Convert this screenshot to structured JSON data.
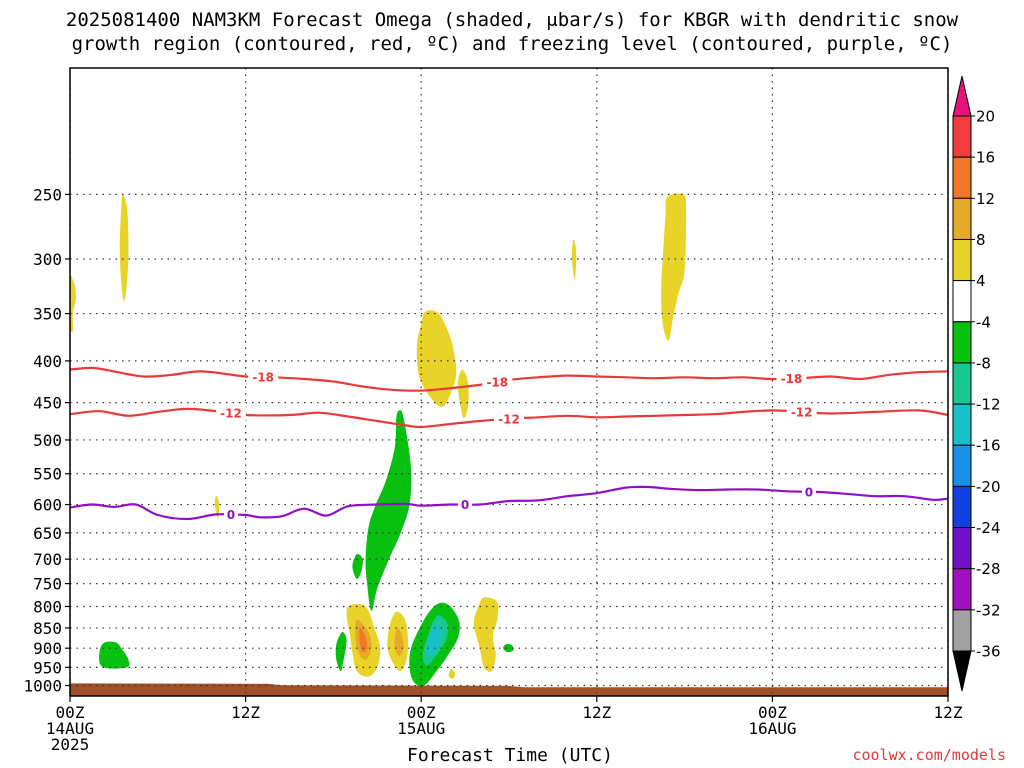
{
  "chart_data": {
    "type": "heatmap",
    "title": "2025081400 NAM3KM Forecast Omega (shaded, μbar/s) for KBGR with dendritic snow",
    "subtitle": "growth region (contoured, red, ºC) and freezing level (contoured, purple, ºC)",
    "xlabel": "Forecast Time (UTC)",
    "credit": "coolwx.com/models",
    "x_range_hours": [
      0,
      60
    ],
    "y_range_mb": [
      1030,
      175
    ],
    "y_scale": "log-pressure",
    "grid": true,
    "y_ticks": [
      250,
      300,
      350,
      400,
      450,
      500,
      550,
      600,
      650,
      700,
      750,
      800,
      850,
      900,
      950,
      1000
    ],
    "x_ticks": [
      {
        "hour": 0,
        "lines": [
          "00Z",
          "14AUG",
          "2025"
        ]
      },
      {
        "hour": 12,
        "lines": [
          "12Z"
        ]
      },
      {
        "hour": 24,
        "lines": [
          "00Z",
          "15AUG"
        ]
      },
      {
        "hour": 36,
        "lines": [
          "12Z"
        ]
      },
      {
        "hour": 48,
        "lines": [
          "00Z",
          "16AUG"
        ]
      },
      {
        "hour": 60,
        "lines": [
          "12Z"
        ]
      }
    ],
    "colorbar": {
      "labels": [
        "20",
        "16",
        "12",
        "8",
        "4",
        "-4",
        "-8",
        "-12",
        "-16",
        "-20",
        "-24",
        "-28",
        "-32",
        "-36"
      ],
      "colors": [
        "#e8137a",
        "#f03c3c",
        "#f07828",
        "#e8a828",
        "#e8d428",
        "#ffffff",
        "#08c010",
        "#18c890",
        "#18c0c8",
        "#1890e8",
        "#1040e0",
        "#7010c8",
        "#a010c0",
        "#a0a0a0",
        "#000000"
      ]
    },
    "dgz_contours": [
      {
        "label": "-18",
        "label_hours": [
          13.2,
          29.2,
          49.3
        ],
        "color": "#e83a3a",
        "points": [
          [
            0,
            410
          ],
          [
            1.5,
            408
          ],
          [
            3,
            412
          ],
          [
            5,
            418
          ],
          [
            7,
            416
          ],
          [
            9,
            412
          ],
          [
            12,
            418
          ],
          [
            14,
            419
          ],
          [
            16,
            421
          ],
          [
            18,
            424
          ],
          [
            20,
            430
          ],
          [
            22,
            434
          ],
          [
            24,
            435
          ],
          [
            26,
            432
          ],
          [
            28,
            428
          ],
          [
            30,
            422
          ],
          [
            32,
            419
          ],
          [
            34,
            417
          ],
          [
            36,
            418
          ],
          [
            38,
            419
          ],
          [
            40,
            420
          ],
          [
            42,
            419
          ],
          [
            44,
            420
          ],
          [
            46,
            419
          ],
          [
            48,
            421
          ],
          [
            50,
            420
          ],
          [
            52,
            418
          ],
          [
            54,
            421
          ],
          [
            56,
            416
          ],
          [
            58,
            413
          ],
          [
            60,
            412
          ]
        ]
      },
      {
        "label": "-12",
        "label_hours": [
          11.0,
          30.0,
          50.0
        ],
        "color": "#e83a3a",
        "points": [
          [
            0,
            465
          ],
          [
            2,
            461
          ],
          [
            4,
            467
          ],
          [
            6,
            462
          ],
          [
            8,
            458
          ],
          [
            10,
            461
          ],
          [
            12,
            466
          ],
          [
            15,
            466
          ],
          [
            17,
            463
          ],
          [
            19,
            468
          ],
          [
            21,
            474
          ],
          [
            23,
            480
          ],
          [
            24,
            482
          ],
          [
            26,
            478
          ],
          [
            28,
            474
          ],
          [
            30,
            471
          ],
          [
            32,
            469
          ],
          [
            34,
            467
          ],
          [
            36,
            469
          ],
          [
            38,
            468
          ],
          [
            40,
            467
          ],
          [
            42,
            466
          ],
          [
            44,
            465
          ],
          [
            46,
            462
          ],
          [
            48,
            460
          ],
          [
            50,
            462
          ],
          [
            52,
            464
          ],
          [
            55,
            462
          ],
          [
            58,
            460
          ],
          [
            60,
            466
          ]
        ]
      },
      {
        "label": "0",
        "label_hours": [
          11.0,
          27.0,
          50.5
        ],
        "color": "#9010c8",
        "points": [
          [
            0,
            605
          ],
          [
            1.5,
            600
          ],
          [
            3,
            604
          ],
          [
            4.5,
            600
          ],
          [
            6,
            618
          ],
          [
            8,
            625
          ],
          [
            10,
            617
          ],
          [
            12,
            618
          ],
          [
            13,
            622
          ],
          [
            14.5,
            620
          ],
          [
            16,
            607
          ],
          [
            17.5,
            619
          ],
          [
            19,
            603
          ],
          [
            21,
            600
          ],
          [
            23,
            599
          ],
          [
            24,
            602
          ],
          [
            26,
            600
          ],
          [
            28,
            600
          ],
          [
            30,
            594
          ],
          [
            32,
            593
          ],
          [
            34,
            586
          ],
          [
            36,
            581
          ],
          [
            38,
            572
          ],
          [
            39.5,
            571
          ],
          [
            41,
            574
          ],
          [
            43,
            576
          ],
          [
            45,
            575
          ],
          [
            47,
            575
          ],
          [
            49,
            578
          ],
          [
            51,
            579
          ],
          [
            53,
            582
          ],
          [
            55,
            586
          ],
          [
            57,
            586
          ],
          [
            59,
            592
          ],
          [
            60,
            590
          ]
        ]
      }
    ],
    "omega_regions": [
      {
        "color": "#e8d428",
        "bounds": [
          [
            -0.1,
            315
          ],
          [
            0.3,
            322
          ],
          [
            0.4,
            335
          ],
          [
            0.2,
            350
          ],
          [
            0.2,
            368
          ],
          [
            -0.1,
            360
          ]
        ]
      },
      {
        "color": "#e8d428",
        "bounds": [
          [
            3.6,
            250
          ],
          [
            3.9,
            260
          ],
          [
            4.0,
            290
          ],
          [
            3.9,
            320
          ],
          [
            3.7,
            338
          ],
          [
            3.5,
            320
          ],
          [
            3.4,
            290
          ],
          [
            3.5,
            260
          ]
        ]
      },
      {
        "color": "#e8d428",
        "bounds": [
          [
            34.4,
            284
          ],
          [
            34.6,
            295
          ],
          [
            34.5,
            318
          ],
          [
            34.3,
            300
          ]
        ]
      },
      {
        "color": "#e8d428",
        "bounds": [
          [
            40.8,
            252
          ],
          [
            41.9,
            250
          ],
          [
            42.1,
            260
          ],
          [
            42.0,
            310
          ],
          [
            41.6,
            330
          ],
          [
            41.2,
            355
          ],
          [
            40.9,
            378
          ],
          [
            40.5,
            360
          ],
          [
            40.4,
            330
          ],
          [
            40.5,
            300
          ],
          [
            40.7,
            265
          ]
        ]
      },
      {
        "color": "#e8d428",
        "bounds": [
          [
            24.3,
            348
          ],
          [
            25.2,
            350
          ],
          [
            26.0,
            375
          ],
          [
            26.4,
            410
          ],
          [
            26.1,
            435
          ],
          [
            25.5,
            455
          ],
          [
            24.8,
            447
          ],
          [
            23.9,
            420
          ],
          [
            23.7,
            385
          ],
          [
            24.0,
            360
          ]
        ]
      },
      {
        "color": "#e8d428",
        "bounds": [
          [
            26.8,
            410
          ],
          [
            27.2,
            425
          ],
          [
            27.2,
            455
          ],
          [
            26.9,
            470
          ],
          [
            26.6,
            445
          ],
          [
            26.5,
            425
          ]
        ]
      },
      {
        "color": "#e8d428",
        "bounds": [
          [
            10.0,
            585
          ],
          [
            10.2,
            600
          ],
          [
            10.1,
            625
          ],
          [
            9.9,
            600
          ]
        ]
      },
      {
        "color": "#08c010",
        "bounds": [
          [
            22.5,
            460
          ],
          [
            22.8,
            470
          ],
          [
            23.3,
            540
          ],
          [
            23.2,
            600
          ],
          [
            22.6,
            650
          ],
          [
            21.8,
            700
          ],
          [
            21.0,
            760
          ],
          [
            20.6,
            810
          ],
          [
            20.3,
            750
          ],
          [
            20.2,
            700
          ],
          [
            20.4,
            640
          ],
          [
            20.9,
            600
          ],
          [
            21.6,
            560
          ],
          [
            22.2,
            510
          ],
          [
            22.3,
            470
          ]
        ]
      },
      {
        "color": "#08c010",
        "bounds": [
          [
            19.6,
            690
          ],
          [
            20.0,
            700
          ],
          [
            19.9,
            725
          ],
          [
            19.6,
            740
          ],
          [
            19.3,
            715
          ]
        ]
      },
      {
        "color": "#08c010",
        "bounds": [
          [
            2.2,
            890
          ],
          [
            3.1,
            885
          ],
          [
            3.6,
            905
          ],
          [
            4.0,
            930
          ],
          [
            3.9,
            950
          ],
          [
            2.5,
            952
          ],
          [
            2.0,
            935
          ]
        ]
      },
      {
        "color": "#08c010",
        "bounds": [
          [
            18.6,
            860
          ],
          [
            18.9,
            880
          ],
          [
            18.7,
            930
          ],
          [
            18.5,
            960
          ],
          [
            18.2,
            930
          ],
          [
            18.2,
            890
          ]
        ]
      },
      {
        "color": "#08c010",
        "bounds": [
          [
            29.8,
            890
          ],
          [
            30.2,
            892
          ],
          [
            30.3,
            905
          ],
          [
            29.9,
            910
          ],
          [
            29.6,
            900
          ]
        ]
      },
      {
        "color": "#08c010",
        "bounds": [
          [
            25.3,
            792
          ],
          [
            26.0,
            800
          ],
          [
            26.6,
            835
          ],
          [
            26.5,
            875
          ],
          [
            25.8,
            920
          ],
          [
            25.1,
            958
          ],
          [
            24.2,
            1000
          ],
          [
            23.5,
            990
          ],
          [
            23.2,
            950
          ],
          [
            23.3,
            900
          ],
          [
            23.9,
            850
          ],
          [
            24.6,
            810
          ]
        ]
      },
      {
        "color": "#18c890",
        "bounds": [
          [
            25.2,
            820
          ],
          [
            25.8,
            840
          ],
          [
            25.7,
            880
          ],
          [
            25.0,
            920
          ],
          [
            24.4,
            945
          ],
          [
            24.1,
            920
          ],
          [
            24.4,
            875
          ],
          [
            24.8,
            835
          ]
        ]
      },
      {
        "color": "#18c0c8",
        "bounds": [
          [
            25.0,
            840
          ],
          [
            25.4,
            860
          ],
          [
            25.2,
            895
          ],
          [
            24.7,
            920
          ],
          [
            24.4,
            905
          ],
          [
            24.6,
            865
          ]
        ]
      },
      {
        "color": "#e8d428",
        "bounds": [
          [
            19.1,
            798
          ],
          [
            20.2,
            800
          ],
          [
            20.8,
            850
          ],
          [
            21.2,
            900
          ],
          [
            21.0,
            950
          ],
          [
            20.4,
            975
          ],
          [
            19.6,
            960
          ],
          [
            19.3,
            910
          ],
          [
            19.1,
            860
          ],
          [
            18.9,
            820
          ]
        ]
      },
      {
        "color": "#e8a828",
        "bounds": [
          [
            19.6,
            830
          ],
          [
            20.4,
            860
          ],
          [
            20.6,
            900
          ],
          [
            20.2,
            930
          ],
          [
            19.7,
            910
          ],
          [
            19.5,
            870
          ]
        ]
      },
      {
        "color": "#f07828",
        "bounds": [
          [
            19.8,
            850
          ],
          [
            20.2,
            870
          ],
          [
            20.3,
            900
          ],
          [
            20.0,
            910
          ],
          [
            19.8,
            885
          ]
        ]
      },
      {
        "color": "#e8d428",
        "bounds": [
          [
            22.4,
            812
          ],
          [
            22.9,
            830
          ],
          [
            23.1,
            880
          ],
          [
            23.0,
            930
          ],
          [
            22.6,
            960
          ],
          [
            22.1,
            940
          ],
          [
            21.7,
            900
          ],
          [
            21.8,
            850
          ],
          [
            22.1,
            820
          ]
        ]
      },
      {
        "color": "#e8a828",
        "bounds": [
          [
            22.4,
            850
          ],
          [
            22.7,
            870
          ],
          [
            22.8,
            900
          ],
          [
            22.5,
            920
          ],
          [
            22.2,
            900
          ],
          [
            22.2,
            870
          ]
        ]
      },
      {
        "color": "#e8d428",
        "bounds": [
          [
            28.3,
            780
          ],
          [
            29.2,
            790
          ],
          [
            29.2,
            830
          ],
          [
            28.9,
            870
          ],
          [
            29.1,
            920
          ],
          [
            28.8,
            960
          ],
          [
            28.3,
            950
          ],
          [
            28.0,
            900
          ],
          [
            27.6,
            840
          ],
          [
            27.9,
            800
          ]
        ]
      },
      {
        "color": "#e8d428",
        "bounds": [
          [
            26.0,
            955
          ],
          [
            26.3,
            965
          ],
          [
            26.2,
            980
          ],
          [
            25.9,
            975
          ]
        ]
      }
    ],
    "ground": {
      "color": "#a05028",
      "top_mb": [
        [
          0,
          994
        ],
        [
          13.5,
          995
        ],
        [
          14.5,
          999
        ],
        [
          30,
          1001
        ],
        [
          31,
          1005
        ],
        [
          60,
          1005
        ]
      ],
      "bottom_mb": 1030
    }
  }
}
